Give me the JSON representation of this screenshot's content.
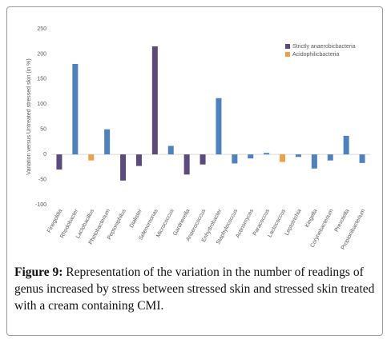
{
  "chart_data": {
    "type": "bar",
    "y_label": "Variation versus Untreated stressed skin (in %)",
    "categories": [
      "Finegoldia",
      "Rhodobacter",
      "Lactobacillus",
      "Photobacterium",
      "Peptoniphilus",
      "Dialister",
      "Selenomonas",
      "Micrococcus",
      "Gardnerella",
      "Anaerococcus",
      "Enhydrobacter",
      "Staphylococcus",
      "Actinomyces",
      "Paracoccus",
      "Lactococcus",
      "Leptotrichia",
      "Kingella",
      "Corynebacterium",
      "Prevotella",
      "Propionibacterium"
    ],
    "values": [
      -30,
      180,
      -12,
      50,
      -52,
      -23,
      215,
      17,
      -40,
      -20,
      112,
      -18,
      -8,
      3,
      -15,
      -5,
      -28,
      -12,
      37,
      -17
    ],
    "colors": [
      "#5c4a7d",
      "#4f81bd",
      "#f0a04b",
      "#4f81bd",
      "#5c4a7d",
      "#5c4a7d",
      "#5c4a7d",
      "#4f81bd",
      "#5c4a7d",
      "#5c4a7d",
      "#4f81bd",
      "#4f81bd",
      "#4f81bd",
      "#4f81bd",
      "#f0a04b",
      "#4f81bd",
      "#4f81bd",
      "#4f81bd",
      "#4f81bd",
      "#4f81bd"
    ],
    "legend": [
      {
        "label": "Strictly anaerobicbacteria",
        "color": "#5c4a7d"
      },
      {
        "label": "Acidophilicbacteria",
        "color": "#f0a04b"
      }
    ],
    "ylim": [
      -100,
      250
    ],
    "yticks": [
      250,
      200,
      150,
      100,
      50,
      0,
      -50,
      -100
    ],
    "grid": false
  },
  "caption": {
    "label": "Figure 9:",
    "text": " Representation of the variation in the number of readings of genus increased by stress between stressed skin and stressed skin treated with a cream containing CMI."
  }
}
